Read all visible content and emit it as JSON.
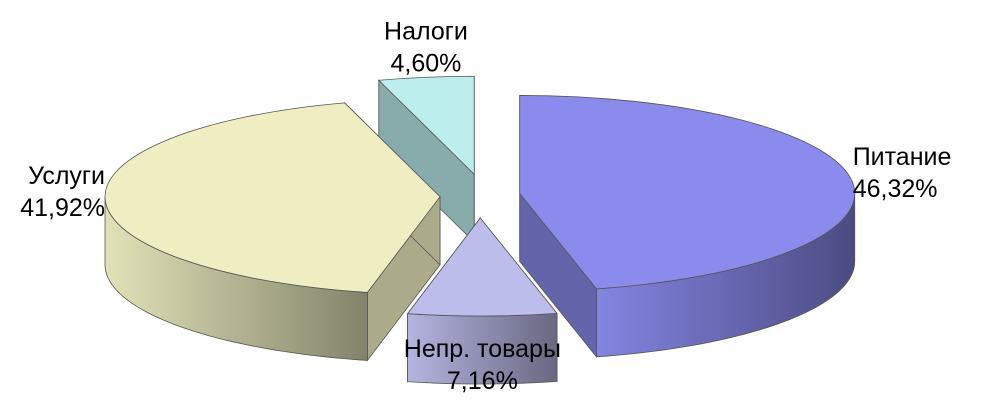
{
  "chart_data": {
    "type": "pie",
    "categories": [
      "Питание",
      "Непр. товары",
      "Услуги",
      "Налоги"
    ],
    "values": [
      46.32,
      7.16,
      41.92,
      4.6
    ],
    "value_labels": [
      "46,32%",
      "7,16%",
      "41,92%",
      "4,60%"
    ],
    "colors": [
      "#8b8bee",
      "#bdbdec",
      "#eeeec2",
      "#bdeeee"
    ]
  }
}
